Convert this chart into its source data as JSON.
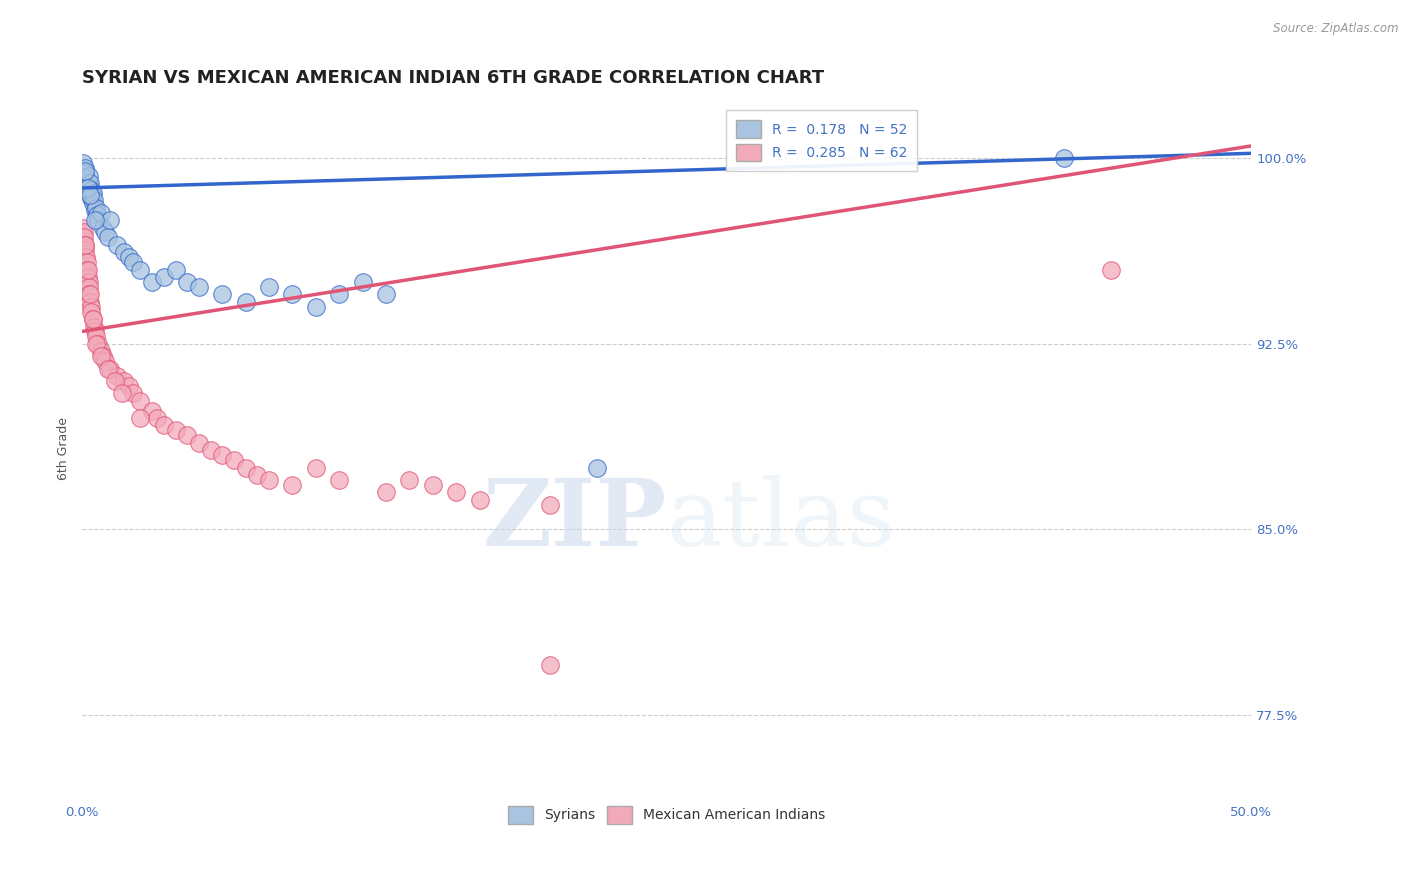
{
  "title": "SYRIAN VS MEXICAN AMERICAN INDIAN 6TH GRADE CORRELATION CHART",
  "source": "Source: ZipAtlas.com",
  "ylabel": "6th Grade",
  "xlim": [
    0.0,
    50.0
  ],
  "ylim": [
    74.0,
    102.5
  ],
  "yticks": [
    77.5,
    85.0,
    92.5,
    100.0
  ],
  "xticks": [
    0.0,
    5.0,
    10.0,
    15.0,
    20.0,
    25.0,
    30.0,
    35.0,
    40.0,
    45.0,
    50.0
  ],
  "ytick_labels": [
    "77.5%",
    "85.0%",
    "92.5%",
    "100.0%"
  ],
  "blue_R": 0.178,
  "blue_N": 52,
  "pink_R": 0.285,
  "pink_N": 62,
  "blue_color": "#A8C4E0",
  "pink_color": "#F2AABB",
  "blue_line_color": "#3366CC",
  "pink_line_color": "#E05575",
  "legend_labels": [
    "Syrians",
    "Mexican American Indians"
  ],
  "blue_scatter_x": [
    0.05,
    0.08,
    0.1,
    0.12,
    0.15,
    0.18,
    0.2,
    0.22,
    0.25,
    0.28,
    0.3,
    0.32,
    0.35,
    0.38,
    0.4,
    0.42,
    0.45,
    0.48,
    0.5,
    0.55,
    0.6,
    0.65,
    0.7,
    0.8,
    0.9,
    1.0,
    1.1,
    1.2,
    1.5,
    1.8,
    2.0,
    2.2,
    2.5,
    3.0,
    3.5,
    4.0,
    4.5,
    5.0,
    6.0,
    7.0,
    8.0,
    9.0,
    10.0,
    11.0,
    12.0,
    13.0,
    0.15,
    0.25,
    0.35,
    0.55,
    22.0,
    42.0
  ],
  "blue_scatter_y": [
    99.8,
    99.5,
    99.3,
    99.6,
    99.4,
    99.2,
    99.0,
    98.8,
    99.1,
    98.9,
    99.3,
    98.6,
    99.0,
    98.4,
    98.7,
    98.5,
    98.2,
    98.6,
    98.3,
    97.9,
    98.0,
    97.7,
    97.5,
    97.8,
    97.2,
    97.0,
    96.8,
    97.5,
    96.5,
    96.2,
    96.0,
    95.8,
    95.5,
    95.0,
    95.2,
    95.5,
    95.0,
    94.8,
    94.5,
    94.2,
    94.8,
    94.5,
    94.0,
    94.5,
    95.0,
    94.5,
    99.5,
    98.8,
    98.5,
    97.5,
    87.5,
    100.0
  ],
  "pink_scatter_x": [
    0.05,
    0.08,
    0.1,
    0.12,
    0.15,
    0.18,
    0.2,
    0.22,
    0.25,
    0.28,
    0.3,
    0.32,
    0.35,
    0.38,
    0.4,
    0.45,
    0.5,
    0.55,
    0.6,
    0.7,
    0.8,
    0.9,
    1.0,
    1.2,
    1.5,
    1.8,
    2.0,
    2.2,
    2.5,
    3.0,
    3.2,
    3.5,
    4.0,
    4.5,
    5.0,
    5.5,
    6.0,
    6.5,
    7.0,
    7.5,
    8.0,
    9.0,
    10.0,
    11.0,
    13.0,
    14.0,
    15.0,
    16.0,
    17.0,
    20.0,
    0.15,
    0.25,
    0.35,
    0.45,
    0.6,
    0.8,
    1.1,
    1.4,
    1.7,
    2.5,
    20.0,
    44.0
  ],
  "pink_scatter_y": [
    97.2,
    97.0,
    96.8,
    96.5,
    96.3,
    96.0,
    95.8,
    95.5,
    95.2,
    95.0,
    94.8,
    94.5,
    94.2,
    94.0,
    93.8,
    93.5,
    93.2,
    93.0,
    92.8,
    92.5,
    92.2,
    92.0,
    91.8,
    91.5,
    91.2,
    91.0,
    90.8,
    90.5,
    90.2,
    89.8,
    89.5,
    89.2,
    89.0,
    88.8,
    88.5,
    88.2,
    88.0,
    87.8,
    87.5,
    87.2,
    87.0,
    86.8,
    87.5,
    87.0,
    86.5,
    87.0,
    86.8,
    86.5,
    86.2,
    86.0,
    96.5,
    95.5,
    94.5,
    93.5,
    92.5,
    92.0,
    91.5,
    91.0,
    90.5,
    89.5,
    79.5,
    95.5
  ],
  "blue_trend_x": [
    0.0,
    50.0
  ],
  "blue_trend_y": [
    98.8,
    100.2
  ],
  "pink_trend_x": [
    0.0,
    50.0
  ],
  "pink_trend_y": [
    93.0,
    100.5
  ],
  "watermark_zip": "ZIP",
  "watermark_atlas": "atlas",
  "background_color": "#FFFFFF",
  "grid_color": "#CCCCCC",
  "title_fontsize": 13,
  "axis_label_fontsize": 9,
  "tick_fontsize": 9.5,
  "legend_fontsize": 10,
  "right_label_color": "#4472C4"
}
